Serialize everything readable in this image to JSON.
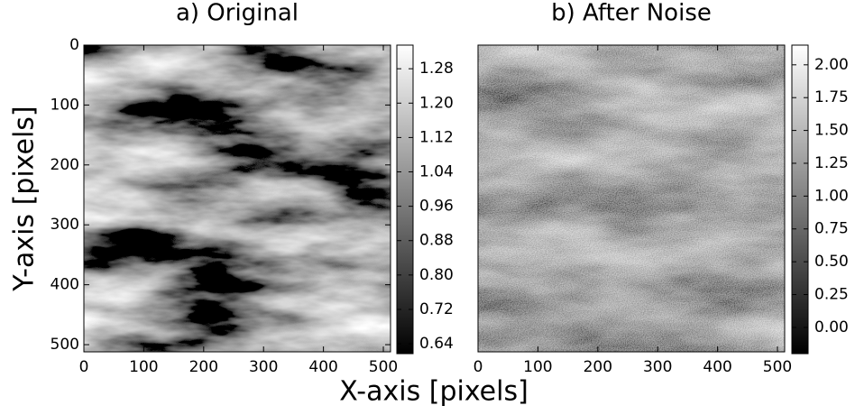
{
  "xlabel": "X-axis [pixels]",
  "ylabel": "Y-axis [pixels]",
  "chart_data": [
    {
      "type": "image",
      "title": "a) Original",
      "cmap": "gray",
      "xlim": [
        0,
        512
      ],
      "ylim": [
        512,
        0
      ],
      "xticks": [
        0,
        100,
        200,
        300,
        400,
        500
      ],
      "yticks": [
        0,
        100,
        200,
        300,
        400,
        500
      ],
      "colorbar": {
        "clim": [
          0.617,
          1.335
        ],
        "ticks": [
          0.64,
          0.72,
          {
            "value": 0.8,
            "label": "0.80"
          },
          0.88,
          0.96,
          1.04,
          1.12,
          {
            "value": 1.2,
            "label": "1.20"
          },
          1.28
        ]
      }
    },
    {
      "type": "image",
      "title": "b) After Noise",
      "cmap": "gray",
      "noise": true,
      "xlim": [
        0,
        512
      ],
      "ylim": [
        512,
        0
      ],
      "xticks": [
        0,
        100,
        200,
        300,
        400,
        500
      ],
      "colorbar": {
        "clim": [
          -0.2,
          2.15
        ],
        "ticks": [
          {
            "value": 0,
            "label": "0.00"
          },
          0.25,
          {
            "value": 0.5,
            "label": "0.50"
          },
          0.75,
          {
            "value": 1,
            "label": "1.00"
          },
          1.25,
          {
            "value": 1.5,
            "label": "1.50"
          },
          1.75,
          {
            "value": 2,
            "label": "2.00"
          }
        ]
      }
    }
  ]
}
